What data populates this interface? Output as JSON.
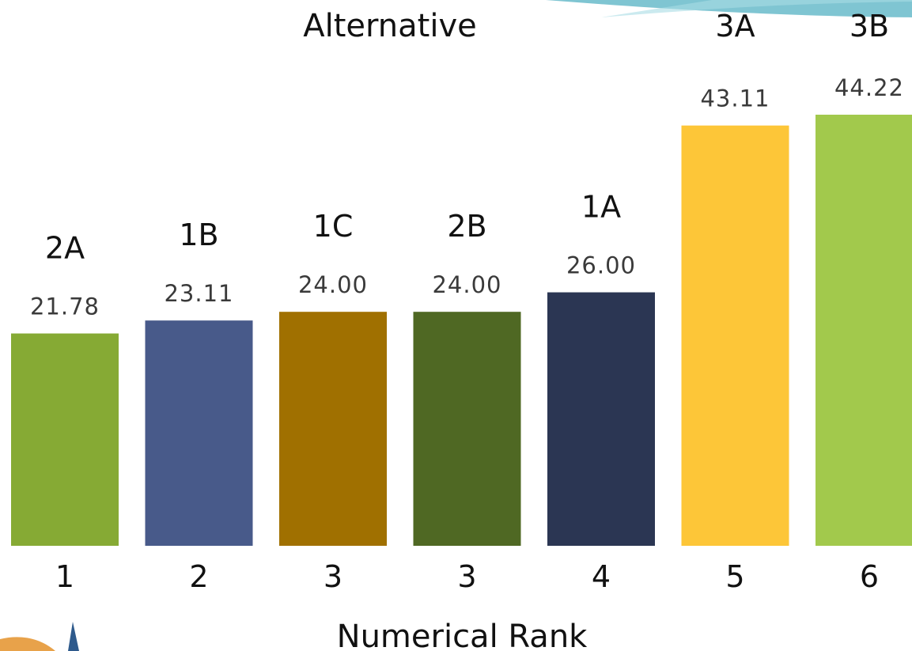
{
  "chart_data": {
    "type": "bar",
    "title": "Alternative",
    "xlabel": "Numerical Rank",
    "ylabel": "",
    "ylim": [
      0,
      50
    ],
    "grid": false,
    "legend": "none",
    "categories": [
      "1",
      "2",
      "3",
      "3",
      "4",
      "5",
      "6"
    ],
    "alternatives": [
      "2A",
      "1B",
      "1C",
      "2B",
      "1A",
      "3A",
      "3B"
    ],
    "values": [
      21.78,
      23.11,
      24.0,
      24.0,
      26.0,
      43.11,
      44.22
    ],
    "value_labels": [
      "21.78",
      "23.11",
      "24.00",
      "24.00",
      "26.00",
      "43.11",
      "44.22"
    ],
    "colors": [
      "#86AA34",
      "#485A8A",
      "#A07000",
      "#4F6823",
      "#2B3653",
      "#FDC638",
      "#A2C94C"
    ]
  },
  "decor": {
    "wave_colors": [
      "#7FC5D2",
      "#A8DCE4"
    ],
    "logo_colors": [
      "#E8A24A",
      "#2E5A8C"
    ]
  }
}
